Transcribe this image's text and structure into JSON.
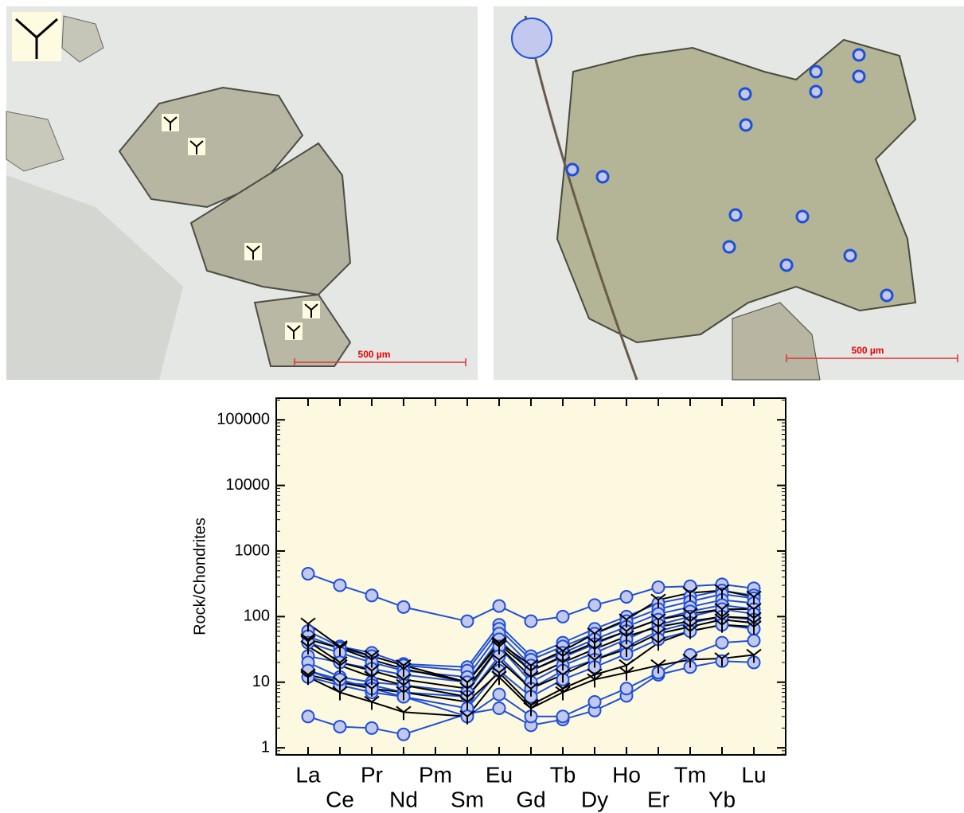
{
  "micrographs": [
    {
      "scale_bar": "500 µm"
    },
    {
      "scale_bar": "500 µm"
    }
  ],
  "chart_data": {
    "type": "line",
    "y_label": "Rock/Chondrites",
    "log_scale": true,
    "background": "#fdf9e0",
    "categories": [
      "La",
      "Ce",
      "Pr",
      "Nd",
      "Pm",
      "Sm",
      "Eu",
      "Gd",
      "Tb",
      "Dy",
      "Ho",
      "Er",
      "Tm",
      "Yb",
      "Lu"
    ],
    "ylim": [
      0.78,
      214000
    ],
    "yticks": [
      1,
      10,
      100,
      1000,
      10000,
      100000
    ],
    "series": [
      {
        "color": "#1f4fd8",
        "marker": "circle",
        "values": [
          450,
          300,
          210,
          140,
          null,
          85,
          145,
          85,
          100,
          150,
          200,
          280,
          290,
          310,
          270
        ]
      },
      {
        "color": "#1f4fd8",
        "marker": "circle",
        "values": [
          3,
          2.1,
          2.0,
          1.6,
          null,
          3.3,
          4.0,
          2.2,
          2.7,
          3.7,
          6.2,
          13,
          17,
          21,
          20
        ]
      },
      {
        "color": "#1f4fd8",
        "marker": "circle",
        "values": [
          60,
          35,
          28,
          19,
          null,
          17,
          75,
          25,
          40,
          65,
          100,
          160,
          200,
          250,
          210
        ]
      },
      {
        "color": "#1f4fd8",
        "marker": "circle",
        "values": [
          50,
          33,
          25,
          18,
          null,
          15,
          65,
          22,
          35,
          55,
          85,
          130,
          170,
          220,
          190
        ]
      },
      {
        "color": "#1f4fd8",
        "marker": "circle",
        "values": [
          40,
          28,
          20,
          15,
          null,
          12,
          55,
          18,
          28,
          45,
          70,
          110,
          140,
          180,
          160
        ]
      },
      {
        "color": "#1f4fd8",
        "marker": "circle",
        "values": [
          25,
          20,
          16,
          13,
          null,
          10,
          45,
          15,
          24,
          38,
          60,
          90,
          120,
          150,
          130
        ]
      },
      {
        "color": "#1f4fd8",
        "marker": "circle",
        "values": [
          20,
          12,
          10,
          9,
          null,
          7,
          35,
          10,
          18,
          28,
          45,
          75,
          100,
          130,
          110
        ]
      },
      {
        "color": "#1f4fd8",
        "marker": "circle",
        "values": [
          15,
          10,
          9,
          7,
          null,
          6,
          25,
          8,
          15,
          22,
          35,
          60,
          80,
          100,
          90
        ]
      },
      {
        "color": "#1f4fd8",
        "marker": "circle",
        "values": [
          12,
          9,
          7,
          6,
          null,
          4,
          15,
          6,
          11,
          17,
          27,
          45,
          60,
          75,
          65
        ]
      },
      {
        "color": "#1f4fd8",
        "marker": "circle",
        "values": [
          15,
          11,
          8,
          6,
          null,
          3,
          6.5,
          3,
          3,
          5,
          8,
          14,
          26,
          40,
          43
        ]
      },
      {
        "color": "#000000",
        "marker": "y",
        "values": [
          78,
          35,
          25,
          18,
          null,
          10,
          40,
          18,
          30,
          55,
          90,
          180,
          230,
          250,
          200
        ]
      },
      {
        "color": "#000000",
        "marker": "y",
        "values": [
          45,
          33,
          22,
          16,
          null,
          10,
          38,
          15,
          25,
          40,
          60,
          90,
          110,
          130,
          130
        ]
      },
      {
        "color": "#000000",
        "marker": "y",
        "values": [
          42,
          20,
          15,
          11,
          null,
          8,
          35,
          12,
          20,
          32,
          50,
          70,
          85,
          100,
          95
        ]
      },
      {
        "color": "#000000",
        "marker": "y",
        "values": [
          35,
          18,
          12,
          9,
          null,
          6,
          22,
          8,
          13,
          22,
          32,
          55,
          70,
          90,
          80
        ]
      },
      {
        "color": "#000000",
        "marker": "y",
        "values": [
          13,
          10,
          8,
          7,
          null,
          5,
          14,
          4.5,
          8,
          13,
          18,
          40,
          60,
          75,
          70
        ]
      },
      {
        "color": "#000000",
        "marker": "y",
        "values": [
          12,
          7,
          5,
          3.5,
          null,
          3,
          12,
          4,
          7,
          11,
          14,
          18,
          22,
          23,
          26
        ]
      }
    ]
  }
}
